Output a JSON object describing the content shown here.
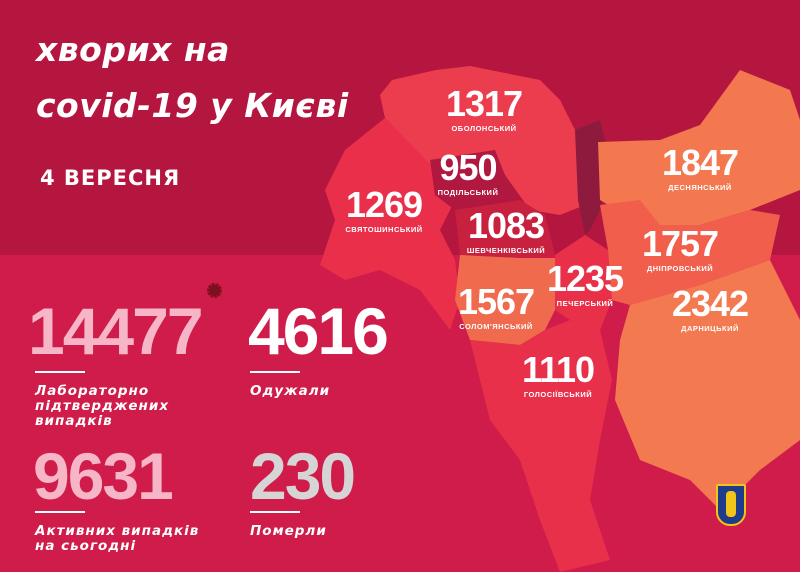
{
  "header": {
    "title_line1": "хворих на",
    "title_line2": "covid-19 у Києві",
    "date": "4 ВЕРЕСНЯ"
  },
  "stats": [
    {
      "value": "14477",
      "label_lines": [
        "Лабораторно",
        "підтверджених",
        "випадків"
      ],
      "color": "#f7b6c8"
    },
    {
      "value": "4616",
      "label_lines": [
        "Одужали"
      ],
      "color": "#ffffff"
    },
    {
      "value": "9631",
      "label_lines": [
        "Активних випадків",
        "на сьогодні"
      ],
      "color": "#f7b6c8"
    },
    {
      "value": "230",
      "label_lines": [
        "Померли"
      ],
      "color": "#d5d5d5"
    }
  ],
  "districts": [
    {
      "name": "ОБОЛОНСЬКИЙ",
      "value": "1317",
      "color": "#ec3d4f"
    },
    {
      "name": "ПОДІЛЬСЬКИЙ",
      "value": "950",
      "color": "#b01840"
    },
    {
      "name": "СВЯТОШИНСЬКИЙ",
      "value": "1269",
      "color": "#ea2f4b"
    },
    {
      "name": "ШЕВЧЕНКІВСЬКИЙ",
      "value": "1083",
      "color": "#c8203f"
    },
    {
      "name": "ДЕСНЯНСЬКИЙ",
      "value": "1847",
      "color": "#f3774f"
    },
    {
      "name": "ДНІПРОВСЬКИЙ",
      "value": "1757",
      "color": "#f15f4c"
    },
    {
      "name": "ПЕЧЕРСЬКИЙ",
      "value": "1235",
      "color": "#e83148"
    },
    {
      "name": "СОЛОМ'ЯНСЬКИЙ",
      "value": "1567",
      "color": "#f06a4d"
    },
    {
      "name": "ДАРНИЦЬКИЙ",
      "value": "2342",
      "color": "#f37a50"
    },
    {
      "name": "ГОЛОСІЇВСЬКИЙ",
      "value": "1110",
      "color": "#e8304a"
    }
  ],
  "colors": {
    "background": "#b5163f",
    "panel": "#cf1c4a"
  }
}
